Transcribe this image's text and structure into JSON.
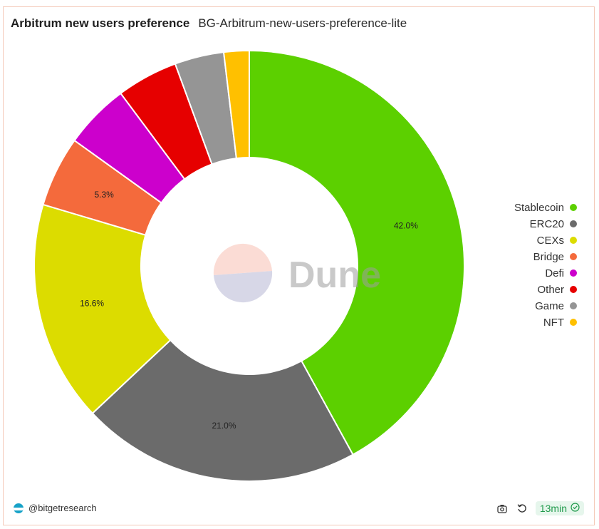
{
  "header": {
    "title": "Arbitrum new users preference",
    "subtitle": "BG-Arbitrum-new-users-preference-lite"
  },
  "chart_data": {
    "type": "pie",
    "donut": true,
    "categories": [
      "Stablecoin",
      "ERC20",
      "CEXs",
      "Bridge",
      "Defi",
      "Other",
      "Game",
      "NFT"
    ],
    "values": [
      42.0,
      21.0,
      16.6,
      5.3,
      4.9,
      4.6,
      3.7,
      1.9
    ],
    "colors": [
      "#5cd000",
      "#6b6b6b",
      "#dcdc00",
      "#f46a3c",
      "#cc00cc",
      "#e60000",
      "#959595",
      "#ffc000"
    ],
    "data_labels": [
      "42.0%",
      "21.0%",
      "16.6%",
      "5.3%",
      "",
      "",
      "",
      ""
    ],
    "legend_position": "right"
  },
  "watermark": {
    "text": "Dune"
  },
  "footer": {
    "account": "@bitgetresearch",
    "camera_icon": "camera-icon",
    "refresh_icon": "refresh-icon",
    "freshness": "13min",
    "check_icon": "check-circle-icon"
  }
}
